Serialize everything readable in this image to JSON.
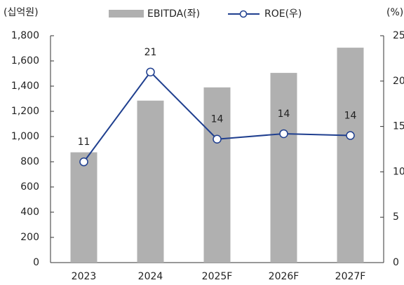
{
  "chart_data": {
    "type": "bar",
    "y_label": "(십억원)",
    "y2_label": "(%)",
    "categories": [
      "2023",
      "2024",
      "2025F",
      "2026F",
      "2027F"
    ],
    "series": [
      {
        "name": "EBITDA(좌)",
        "type": "bar",
        "color": "#b0b0b0",
        "values": [
          875,
          1285,
          1390,
          1505,
          1705
        ]
      },
      {
        "name": "ROE(우)",
        "type": "line",
        "color": "#1f3f8f",
        "axis": "y2",
        "values": [
          11.1,
          21.0,
          13.6,
          14.2,
          14.0
        ],
        "value_labels": [
          "11",
          "21",
          "14",
          "14",
          "14"
        ]
      }
    ],
    "ylim": [
      0,
      1800
    ],
    "yticks": [
      0,
      200,
      400,
      600,
      800,
      {
        "value": 1000,
        "label": "1,000"
      },
      {
        "value": 1200,
        "label": "1,200"
      },
      {
        "value": 1400,
        "label": "1,400"
      },
      {
        "value": 1600,
        "label": "1,600"
      },
      {
        "value": 1800,
        "label": "1,800"
      }
    ],
    "y2lim": [
      0,
      25
    ],
    "y2ticks": [
      0,
      5,
      10,
      15,
      20,
      25
    ],
    "grid": false
  }
}
